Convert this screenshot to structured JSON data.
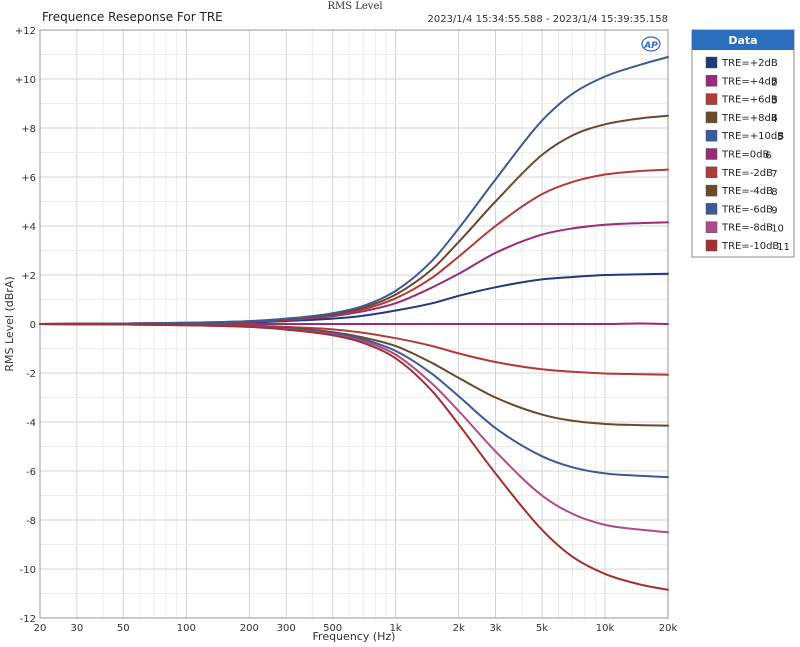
{
  "chart_data": {
    "type": "line",
    "title": "Frequence Reseponse For TRE",
    "center_title": "RMS Level",
    "timestamp": "2023/1/4 15:34:55.588 - 2023/1/4 15:39:35.158",
    "logo": "AP",
    "xlabel": "Frequency (Hz)",
    "ylabel": "RMS Level (dBrA)",
    "x_scale": "log",
    "xlim": [
      20,
      20000
    ],
    "ylim": [
      -12,
      12
    ],
    "grid": true,
    "x_ticks": [
      {
        "value": 20,
        "label": "20"
      },
      {
        "value": 30,
        "label": "30"
      },
      {
        "value": 50,
        "label": "50"
      },
      {
        "value": 100,
        "label": "100"
      },
      {
        "value": 200,
        "label": "200"
      },
      {
        "value": 300,
        "label": "300"
      },
      {
        "value": 500,
        "label": "500"
      },
      {
        "value": 1000,
        "label": "1k"
      },
      {
        "value": 2000,
        "label": "2k"
      },
      {
        "value": 3000,
        "label": "3k"
      },
      {
        "value": 5000,
        "label": "5k"
      },
      {
        "value": 10000,
        "label": "10k"
      },
      {
        "value": 20000,
        "label": "20k"
      }
    ],
    "y_ticks": [
      {
        "value": 12,
        "label": "+12"
      },
      {
        "value": 10,
        "label": "+10"
      },
      {
        "value": 8,
        "label": "+8"
      },
      {
        "value": 6,
        "label": "+6"
      },
      {
        "value": 4,
        "label": "+4"
      },
      {
        "value": 2,
        "label": "+2"
      },
      {
        "value": 0,
        "label": "0"
      },
      {
        "value": -2,
        "label": "-2"
      },
      {
        "value": -4,
        "label": "-4"
      },
      {
        "value": -6,
        "label": "-6"
      },
      {
        "value": -8,
        "label": "-8"
      },
      {
        "value": -10,
        "label": "-10"
      },
      {
        "value": -12,
        "label": "-12"
      }
    ],
    "legend": {
      "title": "Data",
      "placement": "right"
    },
    "x": [
      20,
      50,
      100,
      200,
      300,
      500,
      700,
      1000,
      1500,
      2000,
      3000,
      5000,
      7000,
      10000,
      15000,
      20000
    ],
    "series": [
      {
        "name": "TRE=+2dB",
        "index": "",
        "color": "#1f3a7a",
        "values": [
          0,
          0.02,
          0.03,
          0.06,
          0.12,
          0.22,
          0.34,
          0.55,
          0.85,
          1.15,
          1.5,
          1.82,
          1.92,
          2.0,
          2.03,
          2.05
        ]
      },
      {
        "name": "TRE=+4dB",
        "index": "2",
        "color": "#9b2b7a",
        "values": [
          0,
          0.02,
          0.04,
          0.09,
          0.16,
          0.32,
          0.52,
          0.85,
          1.5,
          2.05,
          2.9,
          3.65,
          3.9,
          4.05,
          4.12,
          4.15
        ]
      },
      {
        "name": "TRE=+6dB",
        "index": "3",
        "color": "#b33a3a",
        "values": [
          0,
          0.02,
          0.04,
          0.1,
          0.18,
          0.36,
          0.6,
          1.05,
          1.9,
          2.75,
          4.0,
          5.3,
          5.8,
          6.1,
          6.25,
          6.3
        ]
      },
      {
        "name": "TRE=+8dB",
        "index": "4",
        "color": "#6b4a2a",
        "values": [
          0,
          0.02,
          0.05,
          0.11,
          0.2,
          0.4,
          0.67,
          1.2,
          2.25,
          3.35,
          5.0,
          6.9,
          7.7,
          8.15,
          8.4,
          8.5
        ]
      },
      {
        "name": "TRE=+10dB",
        "index": "5",
        "color": "#3a5a9a",
        "values": [
          0,
          0.02,
          0.05,
          0.12,
          0.22,
          0.44,
          0.74,
          1.35,
          2.6,
          3.9,
          5.9,
          8.3,
          9.4,
          10.1,
          10.6,
          10.9
        ]
      },
      {
        "name": "TRE=0dB",
        "index": "6",
        "color": "#9b2b7a",
        "values": [
          0,
          0,
          0,
          0,
          0,
          0,
          0,
          0,
          0,
          0,
          0,
          0,
          0,
          0,
          0.02,
          0
        ]
      },
      {
        "name": "TRE=-2dB",
        "index": "7",
        "color": "#b33a3a",
        "values": [
          0,
          -0.02,
          -0.03,
          -0.06,
          -0.12,
          -0.22,
          -0.36,
          -0.58,
          -0.9,
          -1.2,
          -1.55,
          -1.85,
          -1.95,
          -2.02,
          -2.05,
          -2.07
        ]
      },
      {
        "name": "TRE=-4dB",
        "index": "8",
        "color": "#6b4a2a",
        "values": [
          0,
          -0.02,
          -0.04,
          -0.09,
          -0.16,
          -0.33,
          -0.55,
          -0.9,
          -1.6,
          -2.2,
          -3.0,
          -3.7,
          -3.95,
          -4.08,
          -4.13,
          -4.15
        ]
      },
      {
        "name": "TRE=-6dB",
        "index": "9",
        "color": "#3a5a9a",
        "values": [
          0,
          -0.02,
          -0.04,
          -0.1,
          -0.19,
          -0.38,
          -0.63,
          -1.1,
          -2.05,
          -2.95,
          -4.25,
          -5.4,
          -5.85,
          -6.1,
          -6.2,
          -6.25
        ]
      },
      {
        "name": "TRE=-8dB",
        "index": "10",
        "color": "#b04a8a",
        "values": [
          0,
          -0.02,
          -0.05,
          -0.11,
          -0.21,
          -0.42,
          -0.7,
          -1.25,
          -2.45,
          -3.55,
          -5.2,
          -7.0,
          -7.75,
          -8.2,
          -8.4,
          -8.5
        ]
      },
      {
        "name": "TRE=-10dB",
        "index": "11",
        "color": "#a33030",
        "values": [
          0,
          -0.02,
          -0.05,
          -0.12,
          -0.23,
          -0.46,
          -0.77,
          -1.4,
          -2.75,
          -4.1,
          -6.1,
          -8.4,
          -9.5,
          -10.2,
          -10.65,
          -10.85
        ]
      }
    ]
  }
}
